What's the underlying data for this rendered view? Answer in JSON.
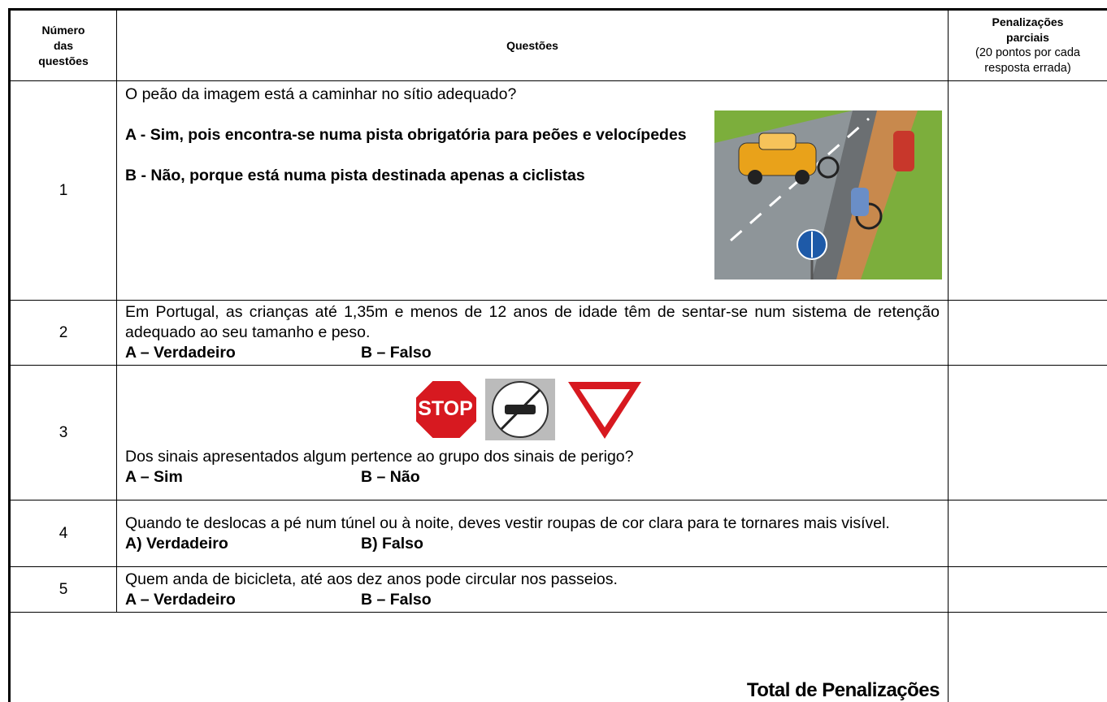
{
  "header": {
    "number_col": "Número das questões",
    "question_col": "Questões",
    "penalty_col": "Penalizações parciais",
    "penalty_note": "(20 pontos por cada resposta errada)"
  },
  "rows": [
    {
      "number": "1",
      "question": "O peão da imagem está a caminhar no sítio adequado?",
      "options": [
        "A - Sim, pois encontra-se numa pista obrigatória para peões e velocípedes",
        "B - Não, porque está numa pista destinada apenas a ciclistas"
      ]
    },
    {
      "number": "2",
      "question": "Em Portugal, as crianças até 1,35m e menos de 12 anos de idade têm de sentar-se num sistema de retenção adequado ao seu tamanho e peso.",
      "options": [
        "A – Verdadeiro",
        "B – Falso"
      ]
    },
    {
      "number": "3",
      "sign_text": "STOP",
      "question": "Dos sinais apresentados algum pertence ao grupo dos sinais de perigo?",
      "options": [
        "A – Sim",
        "B – Não"
      ]
    },
    {
      "number": "4",
      "question": "Quando te deslocas a pé num túnel ou à noite, deves vestir roupas de cor clara para te tornares mais visível.",
      "options": [
        "A) Verdadeiro",
        "B) Falso"
      ]
    },
    {
      "number": "5",
      "question": "Quem anda de bicicleta, até aos dez anos pode circular nos passeios.",
      "options": [
        "A – Verdadeiro",
        "B – Falso"
      ]
    }
  ],
  "footer": {
    "total": "Total de Penalizações"
  }
}
